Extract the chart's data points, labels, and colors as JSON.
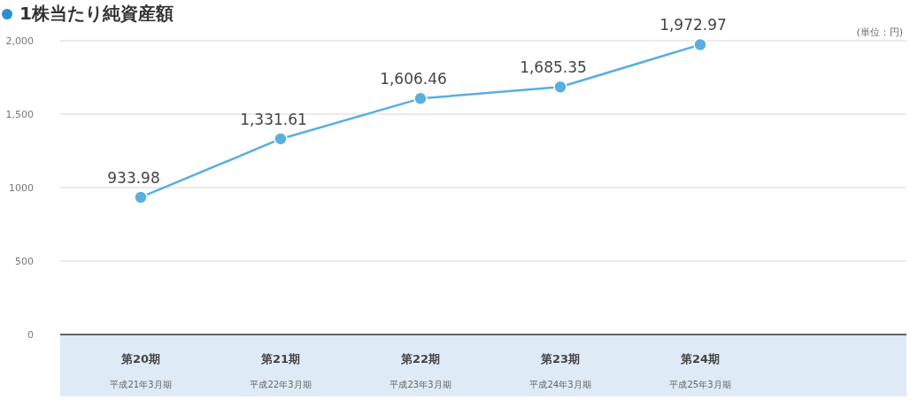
{
  "chart_data": {
    "type": "line",
    "title": "1株当たり純資産額",
    "annotations": [
      "(単位：円)",
      "平成21年3月期",
      "平成22年3月期",
      "平成23年3月期",
      "平成24年3月期",
      "平成25年3月期"
    ],
    "categories": [
      "第20期",
      "第21期",
      "第22期",
      "第23期",
      "第24期"
    ],
    "series": [
      {
        "color": "#5aaee0",
        "values": [
          933.98,
          1331.61,
          1606.46,
          1685.35,
          1972.97
        ],
        "value_labels": [
          "933.98",
          "1,331.61",
          "1,606.46",
          "1,685.35",
          "1,972.97"
        ]
      }
    ],
    "ylim": [
      0,
      2000
    ],
    "yticks": [
      0,
      500,
      1000,
      {
        "value": 1500,
        "label": "1,500"
      },
      {
        "value": 2000,
        "label": "2,000"
      }
    ],
    "grid": "y",
    "marker": "circle",
    "line_style": "solid"
  }
}
